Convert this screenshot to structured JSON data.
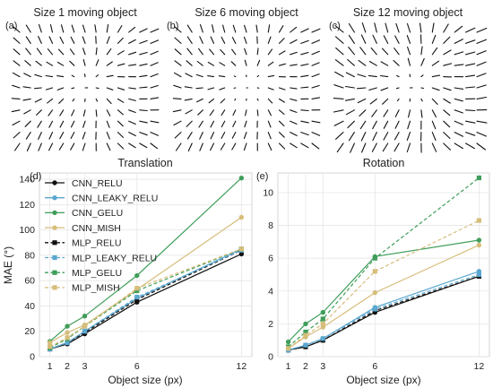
{
  "quiver_panels": [
    {
      "label": "(a)",
      "title": "Size 1 moving object"
    },
    {
      "label": "(b)",
      "title": "Size 6 moving object"
    },
    {
      "label": "(c)",
      "title": "Size 12 moving object"
    }
  ],
  "legend": {
    "entries": [
      {
        "name": "CNN_RELU",
        "color": "#111111",
        "marker": "circle",
        "dash": "solid"
      },
      {
        "name": "CNN_LEAKY_RELU",
        "color": "#5aa7cf",
        "marker": "circle",
        "dash": "solid"
      },
      {
        "name": "CNN_GELU",
        "color": "#3f9e5a",
        "marker": "circle",
        "dash": "solid"
      },
      {
        "name": "CNN_MISH",
        "color": "#d6bd7a",
        "marker": "circle",
        "dash": "solid"
      },
      {
        "name": "MLP_RELU",
        "color": "#111111",
        "marker": "square",
        "dash": "dashed"
      },
      {
        "name": "MLP_LEAKY_RELU",
        "color": "#5aa7cf",
        "marker": "square",
        "dash": "dashed"
      },
      {
        "name": "MLP_GELU",
        "color": "#3f9e5a",
        "marker": "square",
        "dash": "dashed"
      },
      {
        "name": "MLP_MISH",
        "color": "#d6bd7a",
        "marker": "square",
        "dash": "dashed"
      }
    ]
  },
  "chart_data": [
    {
      "type": "line",
      "panel": "(d)",
      "title": "Translation",
      "xlabel": "Object size (px)",
      "ylabel": "MAE (°)",
      "x": [
        1,
        2,
        3,
        6,
        12
      ],
      "xticks": [
        "1",
        "2",
        "3",
        "6",
        "12"
      ],
      "ylim": [
        0,
        145
      ],
      "yticks": [
        0,
        20,
        40,
        60,
        80,
        100,
        120,
        140
      ],
      "grid": true,
      "legend_position": "top-left",
      "series": [
        {
          "name": "CNN_RELU",
          "values": [
            6,
            10,
            18,
            43,
            81
          ]
        },
        {
          "name": "CNN_LEAKY_RELU",
          "values": [
            6,
            11,
            20,
            46,
            85
          ]
        },
        {
          "name": "CNN_GELU",
          "values": [
            12,
            24,
            32,
            64,
            141
          ]
        },
        {
          "name": "CNN_MISH",
          "values": [
            11,
            19,
            25,
            53,
            110
          ]
        },
        {
          "name": "MLP_RELU",
          "values": [
            6,
            11,
            19,
            45,
            84
          ]
        },
        {
          "name": "MLP_LEAKY_RELU",
          "values": [
            6,
            11,
            20,
            47,
            84
          ]
        },
        {
          "name": "MLP_GELU",
          "values": [
            7,
            14,
            24,
            52,
            85
          ]
        },
        {
          "name": "MLP_MISH",
          "values": [
            8,
            15,
            24,
            54,
            85
          ]
        }
      ]
    },
    {
      "type": "line",
      "panel": "(e)",
      "title": "Rotation",
      "xlabel": "Object size (px)",
      "ylabel": "",
      "x": [
        1,
        2,
        3,
        6,
        12
      ],
      "xticks": [
        "1",
        "2",
        "3",
        "6",
        "12"
      ],
      "ylim": [
        0,
        11.2
      ],
      "yticks": [
        0,
        2,
        4,
        6,
        8,
        10
      ],
      "grid": true,
      "series": [
        {
          "name": "CNN_RELU",
          "values": [
            0.4,
            0.6,
            1.0,
            2.7,
            4.9
          ]
        },
        {
          "name": "CNN_LEAKY_RELU",
          "values": [
            0.4,
            0.7,
            1.1,
            3.0,
            5.2
          ]
        },
        {
          "name": "CNN_GELU",
          "values": [
            0.9,
            2.0,
            2.7,
            6.1,
            7.1
          ]
        },
        {
          "name": "CNN_MISH",
          "values": [
            0.5,
            1.2,
            1.8,
            3.9,
            6.8
          ]
        },
        {
          "name": "MLP_RELU",
          "values": [
            0.4,
            0.6,
            1.0,
            2.8,
            4.9
          ]
        },
        {
          "name": "MLP_LEAKY_RELU",
          "values": [
            0.4,
            0.7,
            1.1,
            2.9,
            5.0
          ]
        },
        {
          "name": "MLP_GELU",
          "values": [
            0.6,
            1.5,
            2.3,
            6.0,
            10.9
          ]
        },
        {
          "name": "MLP_MISH",
          "values": [
            0.5,
            1.3,
            2.0,
            5.2,
            8.3
          ]
        }
      ]
    }
  ]
}
